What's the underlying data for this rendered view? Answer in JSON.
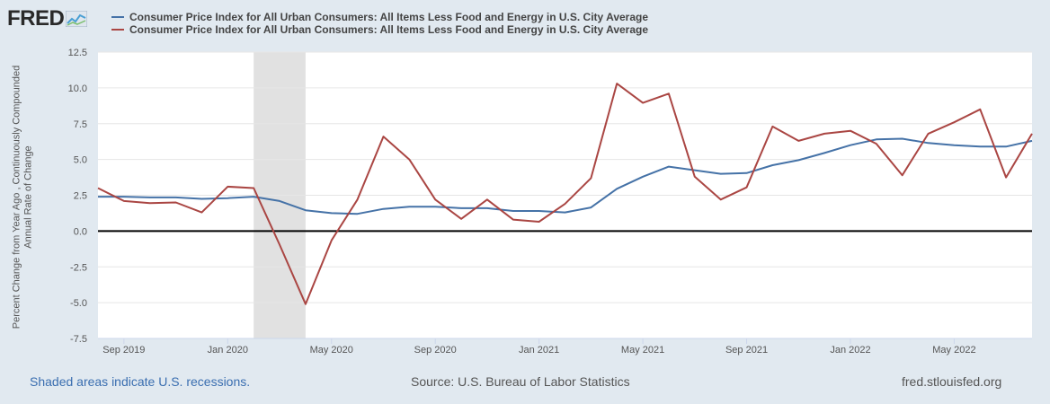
{
  "brand": {
    "name": "FRED",
    "icon": "fred-logo-graph-icon"
  },
  "legend": [
    {
      "label": "Consumer Price Index for All Urban Consumers: All Items Less Food and Energy in U.S. City Average",
      "color": "#4572a7"
    },
    {
      "label": "Consumer Price Index for All Urban Consumers: All Items Less Food and Energy in U.S. City Average",
      "color": "#aa4643"
    }
  ],
  "footer": {
    "recession_note": "Shaded areas indicate U.S. recessions.",
    "source": "Source: U.S. Bureau of Labor Statistics",
    "site": "fred.stlouisfed.org"
  },
  "chart_data": {
    "type": "line",
    "ylabel": "Percent Change from Year Ago , Continuously Compounded Annual Rate of Change",
    "xlabel": "",
    "ylim": [
      -7.5,
      12.5
    ],
    "yticks": [
      "12.5",
      "10.0",
      "7.5",
      "5.0",
      "2.5",
      "0.0",
      "-2.5",
      "-5.0",
      "-7.5"
    ],
    "ytick_values": [
      12.5,
      10,
      7.5,
      5,
      2.5,
      0,
      -2.5,
      -5,
      -7.5
    ],
    "xtick_labels": [
      "Sep 2019",
      "Jan 2020",
      "May 2020",
      "Sep 2020",
      "Jan 2021",
      "May 2021",
      "Sep 2021",
      "Jan 2022",
      "May 2022"
    ],
    "xtick_index": [
      1,
      5,
      9,
      13,
      17,
      21,
      25,
      29,
      33
    ],
    "x": [
      "2019-08",
      "2019-09",
      "2019-10",
      "2019-11",
      "2019-12",
      "2020-01",
      "2020-02",
      "2020-03",
      "2020-04",
      "2020-05",
      "2020-06",
      "2020-07",
      "2020-08",
      "2020-09",
      "2020-10",
      "2020-11",
      "2020-12",
      "2021-01",
      "2021-02",
      "2021-03",
      "2021-04",
      "2021-05",
      "2021-06",
      "2021-07",
      "2021-08",
      "2021-09",
      "2021-10",
      "2021-11",
      "2021-12",
      "2022-01",
      "2022-02",
      "2022-03",
      "2022-04",
      "2022-05",
      "2022-06",
      "2022-07",
      "2022-08"
    ],
    "recession": {
      "start_index": 6.0,
      "end_index": 8.0
    },
    "zero_line": true,
    "grid": true,
    "series": [
      {
        "color": "#4572a7",
        "values": [
          2.4,
          2.4,
          2.35,
          2.35,
          2.25,
          2.3,
          2.4,
          2.1,
          1.45,
          1.25,
          1.2,
          1.55,
          1.7,
          1.7,
          1.6,
          1.6,
          1.4,
          1.4,
          1.3,
          1.65,
          2.95,
          3.8,
          4.5,
          4.25,
          4.0,
          4.05,
          4.6,
          4.95,
          5.45,
          6.0,
          6.4,
          6.45,
          6.15,
          6.0,
          5.9,
          5.9,
          6.3
        ]
      },
      {
        "color": "#aa4643",
        "values": [
          3.0,
          2.1,
          1.95,
          2.0,
          1.3,
          3.1,
          3.0,
          -0.95,
          -5.1,
          -0.65,
          2.2,
          6.6,
          5.0,
          2.2,
          0.85,
          2.2,
          0.8,
          0.65,
          1.9,
          3.7,
          10.3,
          8.95,
          9.6,
          3.8,
          2.2,
          3.05,
          7.3,
          6.3,
          6.8,
          7.0,
          6.1,
          3.9,
          6.8,
          7.6,
          8.5,
          3.75,
          6.8
        ]
      }
    ]
  }
}
